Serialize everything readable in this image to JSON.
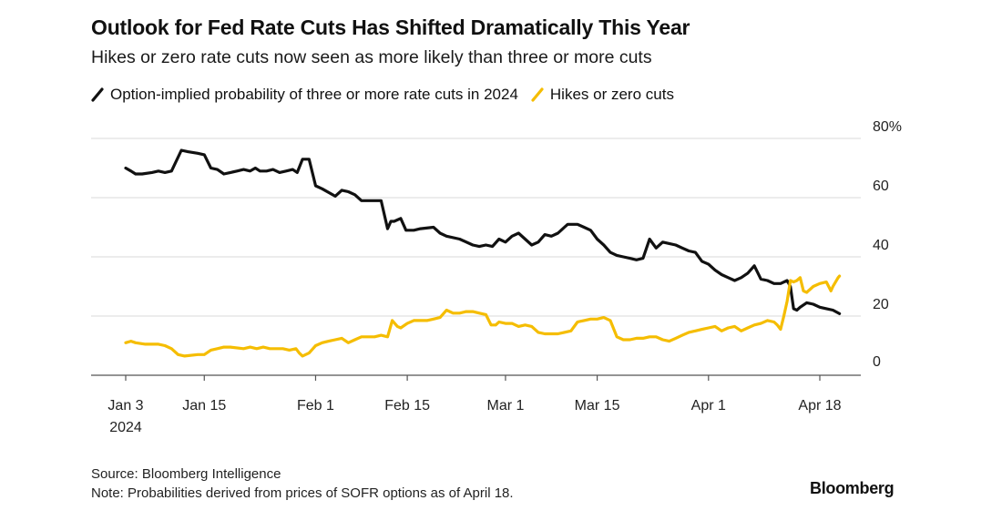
{
  "title": "Outlook for Fed Rate Cuts Has Shifted Dramatically This Year",
  "subtitle": "Hikes or zero rate cuts now seen as more likely than three or more cuts",
  "source": "Source: Bloomberg Intelligence",
  "note": "Note: Probabilities derived from prices of SOFR options as of April 18.",
  "logo": "Bloomberg",
  "chart_data": {
    "type": "line",
    "x_unit": "day of 2024 (Jan 3 = 0)",
    "ylim": [
      0,
      80
    ],
    "y_ticks": [
      {
        "value": 80,
        "label": "80%"
      },
      {
        "value": 60,
        "label": "60"
      },
      {
        "value": 40,
        "label": "40"
      },
      {
        "value": 20,
        "label": "20"
      },
      {
        "value": 0,
        "label": "0"
      }
    ],
    "x_ticks": [
      {
        "day": 0,
        "label": "Jan 3",
        "sublabel": "2024"
      },
      {
        "day": 12,
        "label": "Jan 15"
      },
      {
        "day": 29,
        "label": "Feb 1"
      },
      {
        "day": 43,
        "label": "Feb 15"
      },
      {
        "day": 58,
        "label": "Mar 1"
      },
      {
        "day": 72,
        "label": "Mar 15"
      },
      {
        "day": 89,
        "label": "Apr 1"
      },
      {
        "day": 106,
        "label": "Apr 18"
      }
    ],
    "gridlines": true,
    "legend_position": "top-left",
    "series": [
      {
        "name": "Option-implied probability of three or more rate cuts in 2024",
        "color": "#111111",
        "points": [
          [
            0,
            70
          ],
          [
            0.8,
            69
          ],
          [
            1.5,
            68
          ],
          [
            2.5,
            68
          ],
          [
            4,
            68.5
          ],
          [
            5,
            69
          ],
          [
            6,
            68.5
          ],
          [
            7,
            69
          ],
          [
            8.5,
            76
          ],
          [
            9.5,
            75.5
          ],
          [
            11,
            75
          ],
          [
            12,
            74.5
          ],
          [
            13,
            70
          ],
          [
            14,
            69.5
          ],
          [
            15,
            68
          ],
          [
            16,
            68.5
          ],
          [
            17,
            69
          ],
          [
            18,
            69.5
          ],
          [
            19,
            69
          ],
          [
            19.8,
            70
          ],
          [
            20.5,
            69
          ],
          [
            21.5,
            69
          ],
          [
            22.5,
            69.5
          ],
          [
            23.5,
            68.5
          ],
          [
            24.5,
            69
          ],
          [
            25.5,
            69.5
          ],
          [
            26.2,
            68.5
          ],
          [
            27,
            73
          ],
          [
            28,
            73
          ],
          [
            29,
            64
          ],
          [
            30,
            63
          ],
          [
            32,
            60.5
          ],
          [
            33,
            62.5
          ],
          [
            34,
            62
          ],
          [
            35,
            61
          ],
          [
            36,
            59
          ],
          [
            37,
            59
          ],
          [
            38,
            59
          ],
          [
            39,
            59
          ],
          [
            40,
            49.5
          ],
          [
            40.5,
            52
          ],
          [
            41,
            52
          ],
          [
            42,
            53
          ],
          [
            42.8,
            49
          ],
          [
            44,
            49
          ],
          [
            45,
            49.5
          ],
          [
            47,
            50
          ],
          [
            48,
            48
          ],
          [
            49,
            47
          ],
          [
            51,
            46
          ],
          [
            53,
            44
          ],
          [
            54,
            43.5
          ],
          [
            55,
            44
          ],
          [
            56,
            43.5
          ],
          [
            57,
            46
          ],
          [
            58,
            45
          ],
          [
            59,
            47
          ],
          [
            60,
            48
          ],
          [
            61,
            46
          ],
          [
            62,
            44
          ],
          [
            63,
            45
          ],
          [
            64,
            47.5
          ],
          [
            65,
            47
          ],
          [
            66,
            48
          ],
          [
            67,
            50
          ],
          [
            67.5,
            51
          ],
          [
            69,
            51
          ],
          [
            70,
            50
          ],
          [
            71,
            49
          ],
          [
            72,
            46
          ],
          [
            73,
            44
          ],
          [
            74,
            41.5
          ],
          [
            75,
            40.5
          ],
          [
            76,
            40
          ],
          [
            77,
            39.5
          ],
          [
            78,
            39
          ],
          [
            79,
            39.5
          ],
          [
            80,
            46
          ],
          [
            81,
            43
          ],
          [
            82,
            45
          ],
          [
            83,
            44.5
          ],
          [
            84,
            44
          ],
          [
            85,
            43
          ],
          [
            86,
            42
          ],
          [
            87,
            41.5
          ],
          [
            88,
            38.5
          ],
          [
            89,
            37.5
          ],
          [
            90,
            35.5
          ],
          [
            91,
            34
          ],
          [
            92,
            33
          ],
          [
            93,
            32
          ],
          [
            94,
            33
          ],
          [
            95,
            34.5
          ],
          [
            96,
            37
          ],
          [
            97,
            32.5
          ],
          [
            98,
            32
          ],
          [
            99,
            31
          ],
          [
            100,
            31
          ],
          [
            101,
            32
          ],
          [
            101.5,
            30
          ],
          [
            102,
            22.5
          ],
          [
            102.5,
            22
          ],
          [
            103,
            23
          ],
          [
            104,
            24.5
          ],
          [
            105,
            24
          ],
          [
            106,
            23
          ],
          [
            107,
            22.5
          ],
          [
            108,
            22
          ],
          [
            109,
            20.8
          ]
        ]
      },
      {
        "name": "Hikes or zero cuts",
        "color": "#f5bd00",
        "points": [
          [
            0,
            11
          ],
          [
            0.8,
            11.5
          ],
          [
            1.5,
            11
          ],
          [
            3,
            10.5
          ],
          [
            4,
            10.5
          ],
          [
            5,
            10.5
          ],
          [
            6,
            10
          ],
          [
            7,
            9
          ],
          [
            8,
            7
          ],
          [
            9,
            6.5
          ],
          [
            11,
            7
          ],
          [
            12,
            7
          ],
          [
            13,
            8.5
          ],
          [
            14,
            9
          ],
          [
            15,
            9.5
          ],
          [
            16,
            9.5
          ],
          [
            18,
            9
          ],
          [
            19,
            9.5
          ],
          [
            20,
            9
          ],
          [
            21,
            9.5
          ],
          [
            22,
            9
          ],
          [
            24,
            9
          ],
          [
            25,
            8.5
          ],
          [
            26,
            9
          ],
          [
            26.5,
            7.5
          ],
          [
            27,
            6.5
          ],
          [
            28,
            7.5
          ],
          [
            29,
            10
          ],
          [
            30,
            11
          ],
          [
            31,
            11.5
          ],
          [
            32,
            12
          ],
          [
            33,
            12.5
          ],
          [
            34,
            11
          ],
          [
            35,
            12
          ],
          [
            36,
            13
          ],
          [
            37,
            13
          ],
          [
            38,
            13
          ],
          [
            39,
            13.5
          ],
          [
            40,
            13
          ],
          [
            40.7,
            18.5
          ],
          [
            41.5,
            16.5
          ],
          [
            42,
            16
          ],
          [
            43,
            17.5
          ],
          [
            44,
            18.5
          ],
          [
            45,
            18.5
          ],
          [
            46,
            18.5
          ],
          [
            47,
            19
          ],
          [
            48,
            19.5
          ],
          [
            49,
            22
          ],
          [
            50,
            21
          ],
          [
            51,
            21
          ],
          [
            52,
            21.5
          ],
          [
            53,
            21.5
          ],
          [
            54,
            21
          ],
          [
            55,
            20.5
          ],
          [
            55.8,
            17
          ],
          [
            56.5,
            17
          ],
          [
            57,
            18
          ],
          [
            58,
            17.5
          ],
          [
            59,
            17.5
          ],
          [
            60,
            16.5
          ],
          [
            61,
            17
          ],
          [
            62,
            16.5
          ],
          [
            63,
            14.5
          ],
          [
            64,
            14
          ],
          [
            65,
            14
          ],
          [
            66,
            14
          ],
          [
            67,
            14.5
          ],
          [
            68,
            15
          ],
          [
            69,
            18
          ],
          [
            70,
            18.5
          ],
          [
            71,
            19
          ],
          [
            72,
            19
          ],
          [
            73,
            19.5
          ],
          [
            74,
            18.5
          ],
          [
            75,
            13
          ],
          [
            76,
            12
          ],
          [
            77,
            12
          ],
          [
            78,
            12.5
          ],
          [
            79,
            12.5
          ],
          [
            80,
            13
          ],
          [
            81,
            13
          ],
          [
            82,
            12
          ],
          [
            83,
            11.5
          ],
          [
            84,
            12.5
          ],
          [
            85,
            13.5
          ],
          [
            86,
            14.5
          ],
          [
            87,
            15
          ],
          [
            88,
            15.5
          ],
          [
            89,
            16
          ],
          [
            90,
            16.5
          ],
          [
            91,
            15
          ],
          [
            92,
            16
          ],
          [
            93,
            16.5
          ],
          [
            94,
            15
          ],
          [
            95,
            16
          ],
          [
            96,
            17
          ],
          [
            97,
            17.5
          ],
          [
            98,
            18.5
          ],
          [
            99,
            18
          ],
          [
            99.5,
            17
          ],
          [
            100,
            15.5
          ],
          [
            100.5,
            20
          ],
          [
            101,
            25
          ],
          [
            101.5,
            32
          ],
          [
            102,
            31.5
          ],
          [
            102.5,
            32
          ],
          [
            103,
            33
          ],
          [
            103.5,
            28.5
          ],
          [
            104,
            28
          ],
          [
            105,
            30
          ],
          [
            106,
            31
          ],
          [
            107,
            31.5
          ],
          [
            107.7,
            28.5
          ],
          [
            108,
            30
          ],
          [
            108.8,
            33
          ],
          [
            109,
            33.5
          ]
        ]
      }
    ]
  }
}
